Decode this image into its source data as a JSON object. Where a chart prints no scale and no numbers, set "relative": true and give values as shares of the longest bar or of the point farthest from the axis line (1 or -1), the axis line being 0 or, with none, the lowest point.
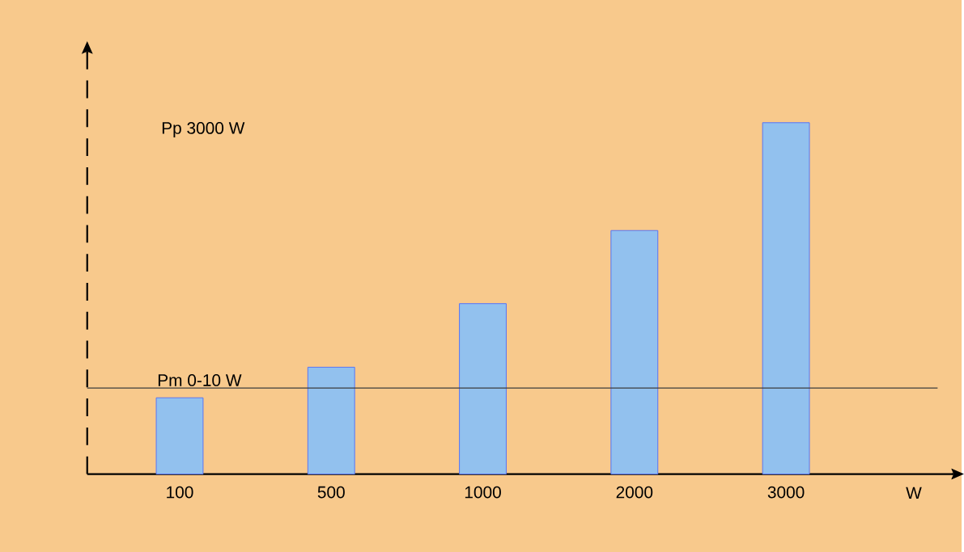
{
  "chart_data": {
    "type": "bar",
    "relative": true,
    "categories": [
      "100",
      "500",
      "1000",
      "2000",
      "3000"
    ],
    "xlabel": "W",
    "values": [
      0.217,
      0.304,
      0.485,
      0.693,
      1
    ],
    "color": "#92c1ee",
    "ref_lines": [
      {
        "axis": "y",
        "value": 0.245,
        "label": "Pm 0-10 W",
        "color": "#3c3c3c"
      }
    ],
    "annotations": [
      "Pp 3000 W"
    ]
  }
}
